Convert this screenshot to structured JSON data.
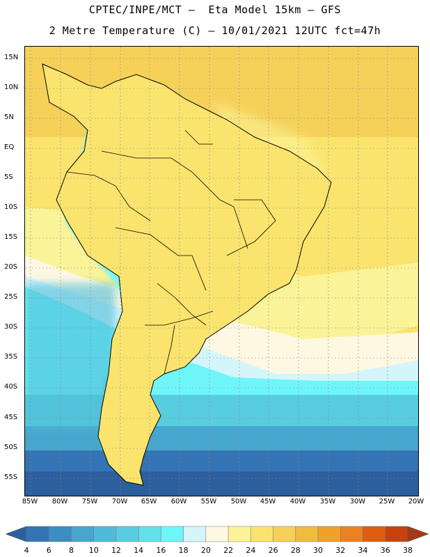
{
  "header": {
    "line1": "CPTEC/INPE/MCT –  Eta Model 15km – GFS",
    "line2": "2 Metre Temperature (C) – 10/01/2021 12UTC fct=47h"
  },
  "map": {
    "lat_labels": [
      "15N",
      "10N",
      "5N",
      "EQ",
      "5S",
      "10S",
      "15S",
      "20S",
      "25S",
      "30S",
      "35S",
      "40S",
      "45S",
      "50S",
      "55S"
    ],
    "lon_labels": [
      "85W",
      "80W",
      "75W",
      "70W",
      "65W",
      "60W",
      "55W",
      "50W",
      "45W",
      "40W",
      "35W",
      "30W",
      "25W",
      "20W"
    ],
    "lon_range": [
      -86,
      -20
    ],
    "lat_range": [
      -58,
      17
    ]
  },
  "legend": {
    "labels": [
      "4",
      "6",
      "8",
      "10",
      "12",
      "14",
      "16",
      "18",
      "20",
      "22",
      "24",
      "26",
      "28",
      "30",
      "32",
      "34",
      "36",
      "38"
    ],
    "colors": [
      "#2c5f9e",
      "#3374b4",
      "#3b8dc3",
      "#46a6cd",
      "#4fbbd8",
      "#58cde0",
      "#62e0eb",
      "#6ff6fa",
      "#d4f6fb",
      "#fdf8e2",
      "#fbf397",
      "#fbe46e",
      "#f6d15a",
      "#efbc3c",
      "#f0a12a",
      "#eb8121",
      "#dd5e12",
      "#c7420c",
      "#a33a18"
    ]
  }
}
